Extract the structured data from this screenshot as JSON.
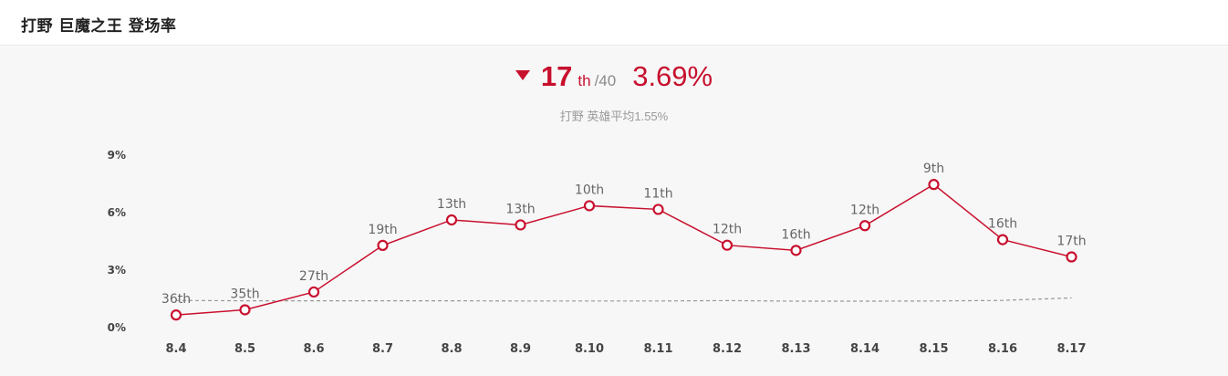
{
  "header": {
    "title": "打野 巨魔之王 登场率"
  },
  "summary": {
    "trend_icon": "down-triangle-icon",
    "rank": "17",
    "rank_suffix": "th",
    "rank_total": "/40",
    "rate": "3.69%",
    "subtitle": "打野 英雄平均1.55%"
  },
  "colors": {
    "accent": "#c8102e",
    "average_line": "#999999",
    "background": "#f7f7f7"
  },
  "chart_data": {
    "type": "line",
    "title": "",
    "xlabel": "",
    "ylabel": "",
    "ylim": [
      0,
      9
    ],
    "y_ticks": [
      0,
      3,
      6,
      9
    ],
    "y_tick_labels": [
      "0%",
      "3%",
      "6%",
      "9%"
    ],
    "grid": false,
    "categories": [
      "8.4",
      "8.5",
      "8.6",
      "8.7",
      "8.8",
      "8.9",
      "8.10",
      "8.11",
      "8.12",
      "8.13",
      "8.14",
      "8.15",
      "8.16",
      "8.17"
    ],
    "series": [
      {
        "name": "登场率",
        "values": [
          0.66,
          0.93,
          1.86,
          4.29,
          5.62,
          5.36,
          6.36,
          6.17,
          4.3,
          4.03,
          5.32,
          7.47,
          4.59,
          3.69
        ],
        "labels": [
          "36th",
          "35th",
          "27th",
          "19th",
          "13th",
          "13th",
          "10th",
          "11th",
          "12th",
          "16th",
          "12th",
          "9th",
          "16th",
          "17th"
        ]
      },
      {
        "name": "英雄平均",
        "values": [
          1.42,
          1.4,
          1.4,
          1.4,
          1.4,
          1.39,
          1.39,
          1.39,
          1.41,
          1.38,
          1.38,
          1.39,
          1.42,
          1.55
        ],
        "style": "dashed"
      }
    ]
  }
}
